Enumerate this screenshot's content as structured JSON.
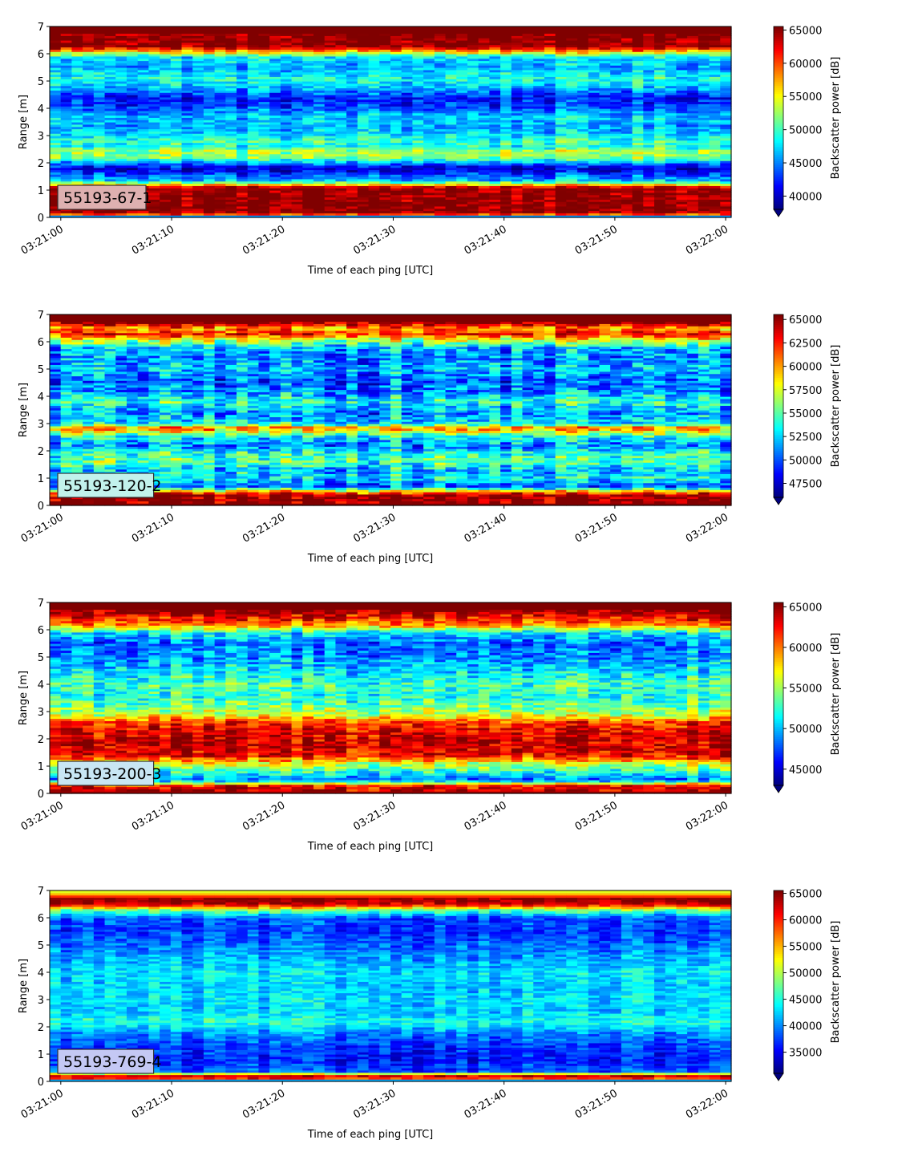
{
  "chart_data": [
    {
      "type": "heatmap",
      "label": "55193-67-1",
      "label_color": "#deb0b0",
      "xlabel": "Time of each ping [UTC]",
      "ylabel": "Range [m]",
      "colorbar_label": "Backscatter power [dB]",
      "x_ticks": [
        "03:21:00",
        "03:21:10",
        "03:21:20",
        "03:21:30",
        "03:21:40",
        "03:21:50",
        "03:22:00"
      ],
      "y_ticks": [
        0,
        1,
        2,
        3,
        4,
        5,
        6,
        7
      ],
      "ylim": [
        0,
        7
      ],
      "xlim_seconds": [
        -1,
        60.5
      ],
      "colorbar_ticks": [
        40000,
        45000,
        50000,
        55000,
        60000,
        65000
      ],
      "colorbar_range": [
        38000,
        65535
      ],
      "colorbar_extend": "min",
      "colormap": "jet",
      "range_profile": [
        [
          0.0,
          38000
        ],
        [
          0.15,
          65000
        ],
        [
          0.3,
          65500
        ],
        [
          1.1,
          65000
        ],
        [
          1.2,
          57000
        ],
        [
          1.35,
          47000
        ],
        [
          1.8,
          40000
        ],
        [
          2.0,
          45000
        ],
        [
          2.2,
          52000
        ],
        [
          2.45,
          53000
        ],
        [
          2.6,
          49000
        ],
        [
          2.8,
          50000
        ],
        [
          3.0,
          48000
        ],
        [
          3.3,
          46000
        ],
        [
          3.7,
          47000
        ],
        [
          4.1,
          43000
        ],
        [
          4.4,
          42000
        ],
        [
          4.8,
          47000
        ],
        [
          5.1,
          49000
        ],
        [
          5.5,
          46000
        ],
        [
          5.9,
          48000
        ],
        [
          6.15,
          60000
        ],
        [
          6.3,
          65535
        ],
        [
          7.0,
          65535
        ]
      ]
    },
    {
      "type": "heatmap",
      "label": "55193-120-2",
      "label_color": "#c2f2ec",
      "xlabel": "Time of each ping [UTC]",
      "ylabel": "Range [m]",
      "colorbar_label": "Backscatter power [dB]",
      "x_ticks": [
        "03:21:00",
        "03:21:10",
        "03:21:20",
        "03:21:30",
        "03:21:40",
        "03:21:50",
        "03:22:00"
      ],
      "y_ticks": [
        0,
        1,
        2,
        3,
        4,
        5,
        6,
        7
      ],
      "ylim": [
        0,
        7
      ],
      "xlim_seconds": [
        -1,
        60.5
      ],
      "colorbar_ticks": [
        47500,
        50000,
        52500,
        55000,
        57500,
        60000,
        62500,
        65000
      ],
      "colorbar_range": [
        46000,
        65535
      ],
      "colorbar_extend": "min",
      "colormap": "jet",
      "range_profile": [
        [
          0.0,
          65535
        ],
        [
          0.4,
          65000
        ],
        [
          0.55,
          58000
        ],
        [
          0.7,
          50000
        ],
        [
          1.0,
          53000
        ],
        [
          1.3,
          52000
        ],
        [
          1.6,
          55000
        ],
        [
          1.9,
          54000
        ],
        [
          2.2,
          51000
        ],
        [
          2.5,
          53000
        ],
        [
          2.85,
          61000
        ],
        [
          3.0,
          53000
        ],
        [
          3.4,
          51000
        ],
        [
          3.8,
          54000
        ],
        [
          4.2,
          51000
        ],
        [
          4.6,
          50000
        ],
        [
          5.0,
          52000
        ],
        [
          5.4,
          51000
        ],
        [
          5.8,
          52000
        ],
        [
          6.1,
          58000
        ],
        [
          6.3,
          63000
        ],
        [
          6.5,
          60000
        ],
        [
          6.7,
          65535
        ],
        [
          7.0,
          65535
        ]
      ]
    },
    {
      "type": "heatmap",
      "label": "55193-200-3",
      "label_color": "#c8e6f4",
      "xlabel": "Time of each ping [UTC]",
      "ylabel": "Range [m]",
      "colorbar_label": "Backscatter power [dB]",
      "x_ticks": [
        "03:21:00",
        "03:21:10",
        "03:21:20",
        "03:21:30",
        "03:21:40",
        "03:21:50",
        "03:22:00"
      ],
      "y_ticks": [
        0,
        1,
        2,
        3,
        4,
        5,
        6,
        7
      ],
      "ylim": [
        0,
        7
      ],
      "xlim_seconds": [
        -1,
        60.5
      ],
      "colorbar_ticks": [
        45000,
        50000,
        55000,
        60000,
        65000
      ],
      "colorbar_range": [
        43000,
        65535
      ],
      "colorbar_extend": "min",
      "colormap": "jet",
      "range_profile": [
        [
          0.0,
          65535
        ],
        [
          0.3,
          62000
        ],
        [
          0.5,
          48000
        ],
        [
          0.8,
          52000
        ],
        [
          1.1,
          56000
        ],
        [
          1.4,
          63000
        ],
        [
          1.8,
          64000
        ],
        [
          2.2,
          63500
        ],
        [
          2.6,
          62000
        ],
        [
          2.9,
          56000
        ],
        [
          3.2,
          54000
        ],
        [
          3.6,
          52000
        ],
        [
          4.0,
          53000
        ],
        [
          4.5,
          51000
        ],
        [
          5.0,
          49000
        ],
        [
          5.5,
          48000
        ],
        [
          5.9,
          51000
        ],
        [
          6.2,
          60000
        ],
        [
          6.5,
          63000
        ],
        [
          6.7,
          65535
        ],
        [
          7.0,
          65535
        ]
      ]
    },
    {
      "type": "heatmap",
      "label": "55193-769-4",
      "label_color": "#c4c8f4",
      "xlabel": "Time of each ping [UTC]",
      "ylabel": "Range [m]",
      "colorbar_label": "Backscatter power [dB]",
      "x_ticks": [
        "03:21:00",
        "03:21:10",
        "03:21:20",
        "03:21:30",
        "03:21:40",
        "03:21:50",
        "03:22:00"
      ],
      "y_ticks": [
        0,
        1,
        2,
        3,
        4,
        5,
        6,
        7
      ],
      "ylim": [
        0,
        7
      ],
      "xlim_seconds": [
        -1,
        60.5
      ],
      "colorbar_ticks": [
        35000,
        40000,
        45000,
        50000,
        55000,
        60000,
        65000
      ],
      "colorbar_range": [
        31000,
        65535
      ],
      "colorbar_extend": "min",
      "colormap": "jet",
      "range_profile": [
        [
          0.0,
          32000
        ],
        [
          0.15,
          65000
        ],
        [
          0.25,
          60000
        ],
        [
          0.35,
          38000
        ],
        [
          0.8,
          36000
        ],
        [
          1.3,
          37000
        ],
        [
          1.8,
          40000
        ],
        [
          2.2,
          45000
        ],
        [
          2.6,
          42000
        ],
        [
          3.0,
          43000
        ],
        [
          3.5,
          42000
        ],
        [
          4.0,
          43000
        ],
        [
          4.5,
          41000
        ],
        [
          5.0,
          39000
        ],
        [
          5.5,
          37000
        ],
        [
          6.0,
          38000
        ],
        [
          6.3,
          48000
        ],
        [
          6.5,
          63000
        ],
        [
          6.7,
          65535
        ],
        [
          6.85,
          56000
        ],
        [
          7.0,
          50000
        ]
      ]
    }
  ]
}
